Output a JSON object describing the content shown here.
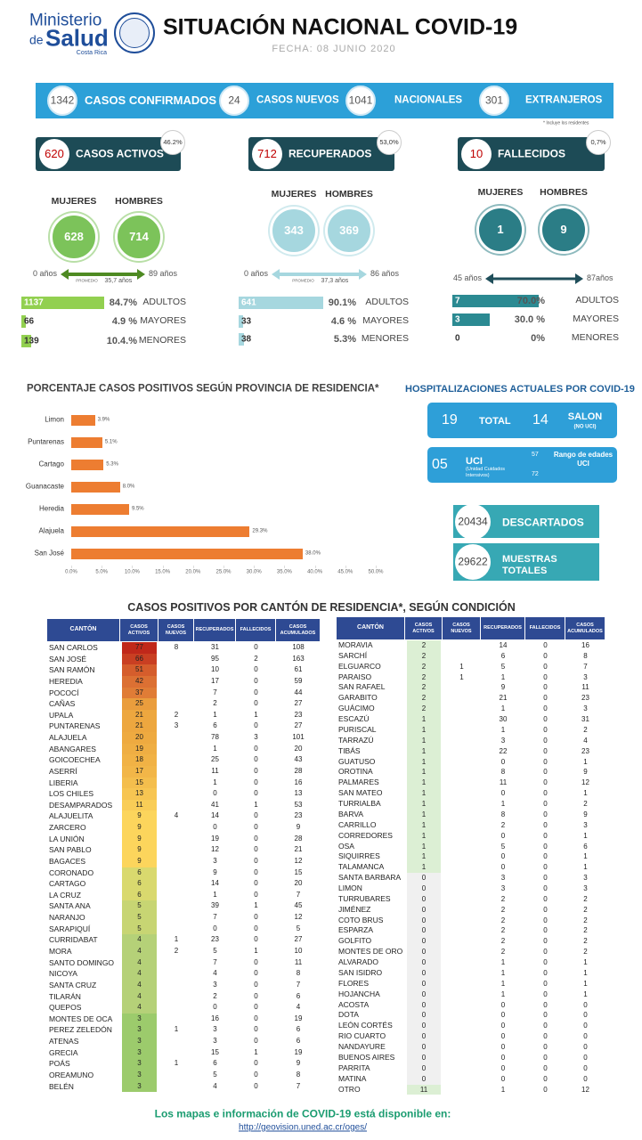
{
  "header": {
    "logo": [
      "Ministerio",
      "de",
      "Salud",
      "Costa Rica"
    ],
    "title": "SITUACIÓN NACIONAL COVID-19",
    "date": "FECHA: 08 JUNIO 2020"
  },
  "summary": {
    "items": [
      {
        "value": 1342,
        "label": "CASOS CONFIRMADOS"
      },
      {
        "value": 24,
        "label": "CASOS NUEVOS"
      },
      {
        "value": 1041,
        "label": "NACIONALES"
      },
      {
        "value": 301,
        "label": "EXTRANJEROS"
      }
    ],
    "note": "* Incluye los residentes"
  },
  "panels": [
    {
      "count": 620,
      "label": "CASOS ACTIVOS",
      "pct": "46.2%",
      "women_label": "MUJERES",
      "men_label": "HOMBRES",
      "women": 628,
      "men": 714,
      "age_min": "0 años",
      "age_max": "89 años",
      "avg_label": "PROMEDIO",
      "avg": "35,7 años",
      "rows": [
        {
          "value": 1137,
          "pct": "84.7%",
          "label": "ADULTOS"
        },
        {
          "value": 66,
          "pct": "4.9 %",
          "label": "MAYORES"
        },
        {
          "value": 139,
          "pct": "10.4.%",
          "label": "MENORES"
        }
      ]
    },
    {
      "count": 712,
      "label": "RECUPERADOS",
      "pct": "53,0%",
      "women_label": "MUJERES",
      "men_label": "HOMBRES",
      "women": 343,
      "men": 369,
      "age_min": "0 años",
      "age_max": "86 años",
      "avg_label": "PROMEDIO",
      "avg": "37,3 años",
      "rows": [
        {
          "value": 641,
          "pct": "90.1%",
          "label": "ADULTOS"
        },
        {
          "value": 33,
          "pct": "4.6 %",
          "label": "MAYORES"
        },
        {
          "value": 38,
          "pct": "5.3%",
          "label": "MENORES"
        }
      ]
    },
    {
      "count": 10,
      "label": "FALLECIDOS",
      "pct": "0,7%",
      "women_label": "MUJERES",
      "men_label": "HOMBRES",
      "women": 1,
      "men": 9,
      "age_min": "45 años",
      "age_max": "87años",
      "rows": [
        {
          "value": 7,
          "pct": "70.0%",
          "label": "ADULTOS"
        },
        {
          "value": 3,
          "pct": "30.0 %",
          "label": "MAYORES"
        },
        {
          "value": 0,
          "pct": "0%",
          "label": "MENORES"
        }
      ]
    }
  ],
  "chart_data": {
    "type": "hbar",
    "title": "PORCENTAJE CASOS POSITIVOS SEGÚN PROVINCIA DE RESIDENCIA*",
    "categories": [
      "Limon",
      "Puntarenas",
      "Cartago",
      "Guanacaste",
      "Heredia",
      "Alajuela",
      "San José"
    ],
    "values": [
      3.9,
      5.1,
      5.3,
      8.0,
      9.5,
      29.3,
      38.0
    ],
    "value_labels": [
      "3.9%",
      "5.1%",
      "5.3%",
      "8.0%",
      "9.5%",
      "29.3%",
      "38.0%"
    ],
    "color": "#ed7d31",
    "xlim": [
      0,
      50
    ],
    "xticks": [
      {
        "value": 0,
        "label": "0.0%"
      },
      {
        "value": 5,
        "label": "5.0%"
      },
      {
        "value": 10,
        "label": "10.0%"
      },
      {
        "value": 15,
        "label": "15.0%"
      },
      {
        "value": 20,
        "label": "20.0%"
      },
      {
        "value": 25,
        "label": "25.0%"
      },
      {
        "value": 30,
        "label": "30.0%"
      },
      {
        "value": 35,
        "label": "35.0%"
      },
      {
        "value": 40,
        "label": "40.0%"
      },
      {
        "value": 45,
        "label": "45.0%"
      },
      {
        "value": 50,
        "label": "50.0%"
      }
    ]
  },
  "hospital": {
    "title": "HOSPITALIZACIONES ACTUALES POR COVID-19",
    "total": 19,
    "total_label": "TOTAL",
    "salon": 14,
    "salon_label": "SALON",
    "salon_note": "(NO UCI)",
    "uci": "05",
    "uci_label": "UCI",
    "uci_note": "(Unidad Cuidados Intensivos)",
    "range_top": 57,
    "range_bottom": 72,
    "range_label": "Rango de edades UCI"
  },
  "tests": {
    "discarded": {
      "value": 20434,
      "label": "DESCARTADOS"
    },
    "samples": {
      "value": 29622,
      "label": "MUESTRAS TOTALES"
    }
  },
  "table": {
    "title": "CASOS POSITIVOS POR CANTÓN DE RESIDENCIA*, SEGÚN CONDICIÓN",
    "columns": [
      "CANTÓN",
      "CASOS ACTIVOS",
      "CASOS NUEVOS",
      "RECUPERADOS",
      "FALLECIDOS",
      "CASOS ACUMULADOS"
    ],
    "left": [
      [
        "SAN CARLOS",
        77,
        8,
        31,
        0,
        108
      ],
      [
        "SAN JOSÉ",
        66,
        null,
        95,
        2,
        163
      ],
      [
        "SAN RAMÓN",
        51,
        null,
        10,
        0,
        61
      ],
      [
        "HEREDIA",
        42,
        null,
        17,
        0,
        59
      ],
      [
        "POCOCÍ",
        37,
        null,
        7,
        0,
        44
      ],
      [
        "CAÑAS",
        25,
        null,
        2,
        0,
        27
      ],
      [
        "UPALA",
        21,
        2,
        1,
        1,
        23
      ],
      [
        "PUNTARENAS",
        21,
        3,
        6,
        0,
        27
      ],
      [
        "ALAJUELA",
        20,
        null,
        78,
        3,
        101
      ],
      [
        "ABANGARES",
        19,
        null,
        1,
        0,
        20
      ],
      [
        "GOICOECHEA",
        18,
        null,
        25,
        0,
        43
      ],
      [
        "ASERRÍ",
        17,
        null,
        11,
        0,
        28
      ],
      [
        "LIBERIA",
        15,
        null,
        1,
        0,
        16
      ],
      [
        "LOS CHILES",
        13,
        null,
        0,
        0,
        13
      ],
      [
        "DESAMPARADOS",
        11,
        null,
        41,
        1,
        53
      ],
      [
        "ALAJUELITA",
        9,
        4,
        14,
        0,
        23
      ],
      [
        "ZARCERO",
        9,
        null,
        0,
        0,
        9
      ],
      [
        "LA UNIÓN",
        9,
        null,
        19,
        0,
        28
      ],
      [
        "SAN PABLO",
        9,
        null,
        12,
        0,
        21
      ],
      [
        "BAGACES",
        9,
        null,
        3,
        0,
        12
      ],
      [
        "CORONADO",
        6,
        null,
        9,
        0,
        15
      ],
      [
        "CARTAGO",
        6,
        null,
        14,
        0,
        20
      ],
      [
        "LA CRUZ",
        6,
        null,
        1,
        0,
        7
      ],
      [
        "SANTA ANA",
        5,
        null,
        39,
        1,
        45
      ],
      [
        "NARANJO",
        5,
        null,
        7,
        0,
        12
      ],
      [
        "SARAPIQUÍ",
        5,
        null,
        0,
        0,
        5
      ],
      [
        "CURRIDABAT",
        4,
        1,
        23,
        0,
        27
      ],
      [
        "MORA",
        4,
        2,
        5,
        1,
        10
      ],
      [
        "SANTO DOMINGO",
        4,
        null,
        7,
        0,
        11
      ],
      [
        "NICOYA",
        4,
        null,
        4,
        0,
        8
      ],
      [
        "SANTA CRUZ",
        4,
        null,
        3,
        0,
        7
      ],
      [
        "TILARÁN",
        4,
        null,
        2,
        0,
        6
      ],
      [
        "QUEPOS",
        4,
        null,
        0,
        0,
        4
      ],
      [
        "MONTES DE OCA",
        3,
        null,
        16,
        0,
        19
      ],
      [
        "PEREZ ZELEDÓN",
        3,
        1,
        3,
        0,
        6
      ],
      [
        "ATENAS",
        3,
        null,
        3,
        0,
        6
      ],
      [
        "GRECIA",
        3,
        null,
        15,
        1,
        19
      ],
      [
        "POÁS",
        3,
        1,
        6,
        0,
        9
      ],
      [
        "OREAMUNO",
        3,
        null,
        5,
        0,
        8
      ],
      [
        "BELÉN",
        3,
        null,
        4,
        0,
        7
      ]
    ],
    "right": [
      [
        "MORAVIA",
        2,
        null,
        14,
        0,
        16
      ],
      [
        "SARCHÍ",
        2,
        null,
        6,
        0,
        8
      ],
      [
        "ELGUARCO",
        2,
        1,
        5,
        0,
        7
      ],
      [
        "PARAISO",
        2,
        1,
        1,
        0,
        3
      ],
      [
        "SAN RAFAEL",
        2,
        null,
        9,
        0,
        11
      ],
      [
        "GARABITO",
        2,
        null,
        21,
        0,
        23
      ],
      [
        "GUÁCIMO",
        2,
        null,
        1,
        0,
        3
      ],
      [
        "ESCAZÚ",
        1,
        null,
        30,
        0,
        31
      ],
      [
        "PURISCAL",
        1,
        null,
        1,
        0,
        2
      ],
      [
        "TARRAZÚ",
        1,
        null,
        3,
        0,
        4
      ],
      [
        "TIBÁS",
        1,
        null,
        22,
        0,
        23
      ],
      [
        "GUATUSO",
        1,
        null,
        0,
        0,
        1
      ],
      [
        "OROTINA",
        1,
        null,
        8,
        0,
        9
      ],
      [
        "PALMARES",
        1,
        null,
        11,
        0,
        12
      ],
      [
        "SAN MATEO",
        1,
        null,
        0,
        0,
        1
      ],
      [
        "TURRIALBA",
        1,
        null,
        1,
        0,
        2
      ],
      [
        "BARVA",
        1,
        null,
        8,
        0,
        9
      ],
      [
        "CARRILLO",
        1,
        null,
        2,
        0,
        3
      ],
      [
        "CORREDORES",
        1,
        null,
        0,
        0,
        1
      ],
      [
        "OSA",
        1,
        null,
        5,
        0,
        6
      ],
      [
        "SIQUIRRES",
        1,
        null,
        0,
        0,
        1
      ],
      [
        "TALAMANCA",
        1,
        null,
        0,
        0,
        1
      ],
      [
        "SANTA BARBARA",
        0,
        null,
        3,
        0,
        3
      ],
      [
        "LIMON",
        0,
        null,
        3,
        0,
        3
      ],
      [
        "TURRUBARES",
        0,
        null,
        2,
        0,
        2
      ],
      [
        "JIMÉNEZ",
        0,
        null,
        2,
        0,
        2
      ],
      [
        "COTO BRUS",
        0,
        null,
        2,
        0,
        2
      ],
      [
        "ESPARZA",
        0,
        null,
        2,
        0,
        2
      ],
      [
        "GOLFITO",
        0,
        null,
        2,
        0,
        2
      ],
      [
        "MONTES DE ORO",
        0,
        null,
        2,
        0,
        2
      ],
      [
        "ALVARADO",
        0,
        null,
        1,
        0,
        1
      ],
      [
        "SAN ISIDRO",
        0,
        null,
        1,
        0,
        1
      ],
      [
        "FLORES",
        0,
        null,
        1,
        0,
        1
      ],
      [
        "HOJANCHA",
        0,
        null,
        1,
        0,
        1
      ],
      [
        "ACOSTA",
        0,
        null,
        0,
        0,
        0
      ],
      [
        "DOTA",
        0,
        null,
        0,
        0,
        0
      ],
      [
        "LEÓN CORTÉS",
        0,
        null,
        0,
        0,
        0
      ],
      [
        "RIO CUARTO",
        0,
        null,
        0,
        0,
        0
      ],
      [
        "NANDAYURE",
        0,
        null,
        0,
        0,
        0
      ],
      [
        "BUENOS AIRES",
        0,
        null,
        0,
        0,
        0
      ],
      [
        "PARRITA",
        0,
        null,
        0,
        0,
        0
      ],
      [
        "MATINA",
        0,
        null,
        0,
        0,
        0
      ],
      [
        "OTRO",
        11,
        null,
        1,
        0,
        12
      ]
    ]
  },
  "footer": {
    "text": "Los mapas e información de COVID-19 está disponible en:",
    "url": "http://geovision.uned.ac.cr/oges/"
  }
}
